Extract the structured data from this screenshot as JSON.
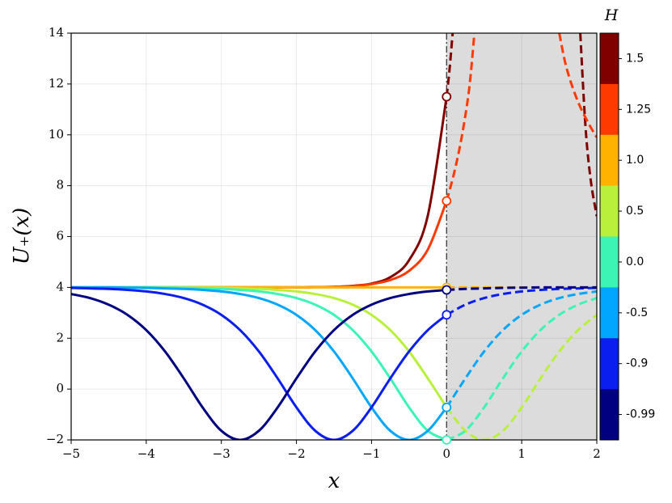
{
  "chart_data": {
    "type": "line",
    "xlabel": "x",
    "ylabel": "U₊(x)",
    "xlim": [
      -5,
      2
    ],
    "ylim": [
      -2,
      14
    ],
    "xticks": [
      {
        "value": -5,
        "label": "−5"
      },
      {
        "value": -4,
        "label": "−4"
      },
      {
        "value": -3,
        "label": "−3"
      },
      {
        "value": -2,
        "label": "−2"
      },
      {
        "value": -1,
        "label": "−1"
      },
      0,
      1,
      2
    ],
    "yticks": [
      {
        "value": -2,
        "label": "−2"
      },
      0,
      2,
      4,
      6,
      8,
      10,
      12,
      14
    ],
    "grid": true,
    "vline": 0,
    "shade": [
      0,
      2
    ],
    "colorbar_title": "H",
    "x": [
      -5,
      -4.75,
      -4.5,
      -4.25,
      -4,
      -3.75,
      -3.5,
      -3.25,
      -3,
      -2.75,
      -2.5,
      -2.25,
      -2,
      -1.75,
      -1.5,
      -1.25,
      -1,
      -0.75,
      -0.5,
      -0.25,
      0,
      0.25,
      0.5,
      0.75,
      1,
      1.25,
      1.5,
      1.75,
      2
    ],
    "series": [
      {
        "name": "1.5",
        "color": "#800000",
        "x": [
          -5,
          -4,
          -3,
          -2,
          -1.75,
          -1.5,
          -1.25,
          -1,
          -0.75,
          -0.5,
          -0.25,
          0,
          0.04,
          0.08,
          1,
          1.78,
          1.85,
          1.92,
          2
        ],
        "values": [
          4,
          4,
          4,
          4,
          4.01,
          4.02,
          4.06,
          4.15,
          4.4,
          5.07,
          6.83,
          11.5,
          12.6,
          14,
          null,
          14,
          10.3,
          8.2,
          6.8
        ]
      },
      {
        "name": "1.25",
        "color": "#ff3a00",
        "x": [
          -5,
          -4,
          -3,
          -2,
          -1.75,
          -1.5,
          -1.25,
          -1,
          -0.75,
          -0.5,
          -0.25,
          0,
          0.1,
          0.2,
          0.3,
          0.37,
          1,
          1.5,
          1.6,
          1.75,
          1.9,
          2
        ],
        "values": [
          4,
          4,
          4,
          4,
          4.01,
          4.02,
          4.05,
          4.13,
          4.29,
          4.65,
          5.49,
          7.4,
          8.5,
          9.9,
          11.8,
          14,
          null,
          14,
          12.6,
          11.3,
          10.4,
          9.9
        ]
      },
      {
        "name": "1.0",
        "color": "#ffb300",
        "values": [
          4,
          4,
          4,
          4,
          4,
          4,
          4,
          4,
          4,
          4,
          4,
          4,
          4,
          4,
          4,
          4,
          4,
          4,
          4,
          4,
          4,
          4,
          4,
          4,
          4,
          4,
          4,
          4,
          4
        ]
      },
      {
        "name": "0.5",
        "color": "#b9f03c",
        "values": [
          4,
          4,
          4,
          4,
          4,
          4,
          4,
          3.99,
          3.98,
          3.96,
          3.94,
          3.9,
          3.84,
          3.74,
          3.58,
          3.32,
          2.92,
          2.32,
          1.48,
          0.42,
          -0.72,
          -1.64,
          -2,
          -1.64,
          -0.72,
          0.42,
          1.48,
          2.32,
          2.92
        ]
      },
      {
        "name": "0.0",
        "color": "#3cf4b4",
        "values": [
          4,
          4,
          4,
          4,
          4,
          3.99,
          3.98,
          3.96,
          3.94,
          3.9,
          3.84,
          3.74,
          3.58,
          3.32,
          2.92,
          2.32,
          1.48,
          0.42,
          -0.72,
          -1.64,
          -2,
          -1.64,
          -0.72,
          0.42,
          1.48,
          2.32,
          2.92,
          3.32,
          3.58
        ]
      },
      {
        "name": "-0.5",
        "color": "#00a6ff",
        "values": [
          4,
          4,
          4,
          3.99,
          3.98,
          3.96,
          3.94,
          3.9,
          3.84,
          3.74,
          3.58,
          3.32,
          2.92,
          2.32,
          1.48,
          0.42,
          -0.72,
          -1.64,
          -2,
          -1.64,
          -0.72,
          0.42,
          1.48,
          2.32,
          2.92,
          3.32,
          3.58,
          3.74,
          3.84
        ]
      },
      {
        "name": "-0.9",
        "color": "#0a1ef0",
        "values": [
          3.98,
          3.96,
          3.94,
          3.9,
          3.84,
          3.74,
          3.58,
          3.32,
          2.92,
          2.32,
          1.48,
          0.42,
          -0.72,
          -1.64,
          -2,
          -1.64,
          -0.72,
          0.42,
          1.48,
          2.32,
          2.92,
          3.32,
          3.58,
          3.74,
          3.84,
          3.9,
          3.94,
          3.96,
          3.98
        ]
      },
      {
        "name": "-0.99",
        "color": "#000080",
        "values": [
          3.74,
          3.58,
          3.32,
          2.92,
          2.32,
          1.48,
          0.42,
          -0.72,
          -1.64,
          -2,
          -1.64,
          -0.72,
          0.42,
          1.48,
          2.32,
          2.92,
          3.32,
          3.58,
          3.74,
          3.84,
          3.9,
          3.94,
          3.96,
          3.98,
          3.99,
          4,
          4,
          4,
          4
        ]
      }
    ]
  }
}
